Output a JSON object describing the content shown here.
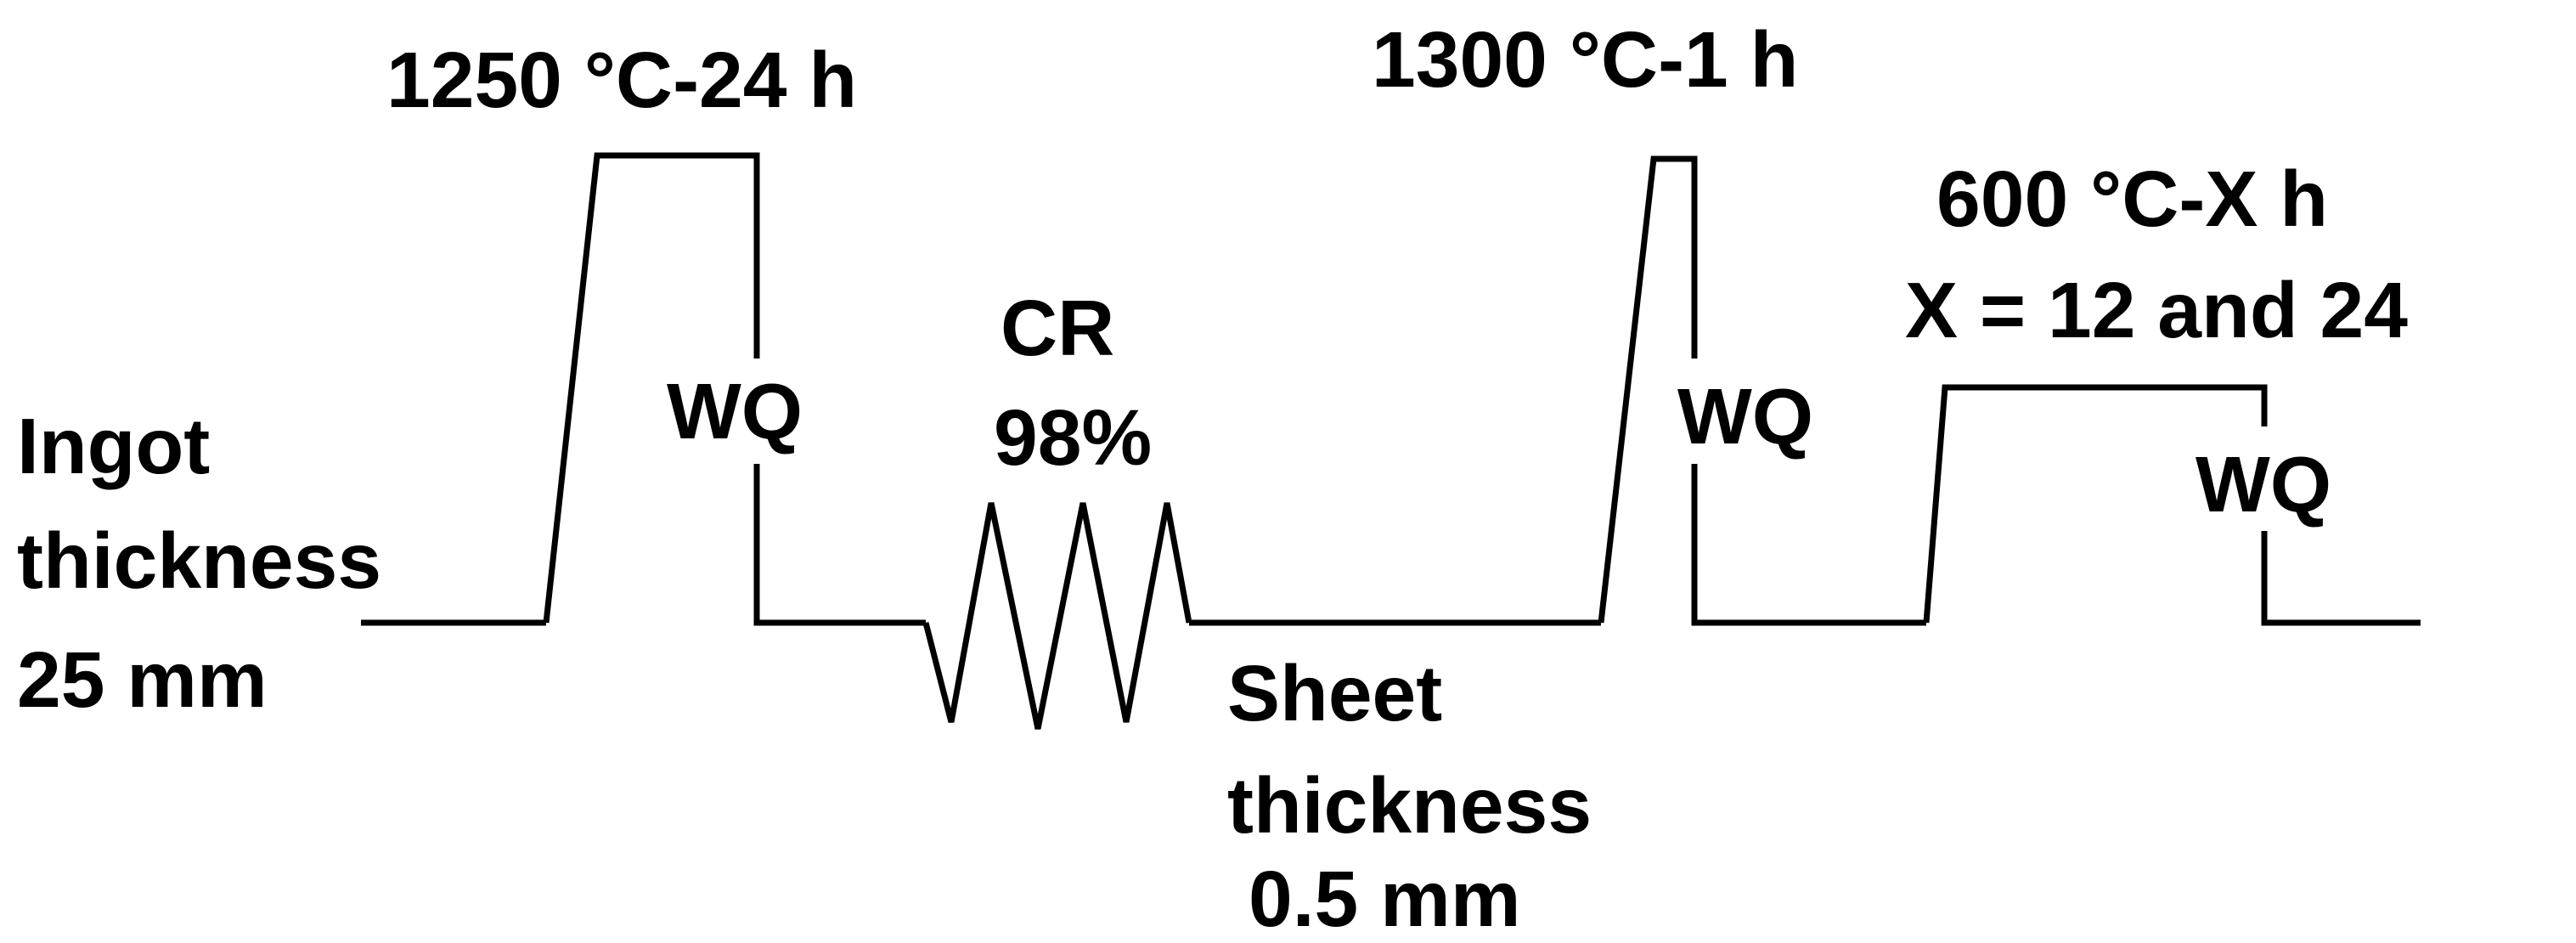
{
  "colors": {
    "line": "#000000",
    "background": "#ffffff",
    "text": "#000000"
  },
  "labels": {
    "ingot": {
      "line1": "Ingot",
      "line2": "thickness",
      "line3": "25 mm"
    },
    "homogenization": "1250 °C-24 h",
    "quench_1": "WQ",
    "cold_rolling": {
      "line1": "CR",
      "line2": "98%"
    },
    "sheet": {
      "line1": "Sheet",
      "line2": "thickness",
      "line3": "0.5 mm"
    },
    "solution_treatment": "1300 °C-1 h",
    "quench_2": "WQ",
    "aging": {
      "line1": "600 °C-X h",
      "line2": "X = 12 and 24"
    },
    "quench_3": "WQ"
  }
}
